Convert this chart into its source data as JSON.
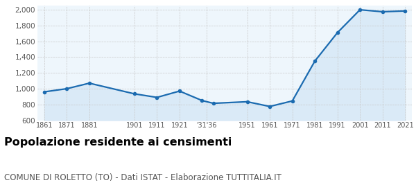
{
  "years": [
    1861,
    1871,
    1881,
    1901,
    1911,
    1921,
    1931,
    1936,
    1951,
    1961,
    1971,
    1981,
    1991,
    2001,
    2011,
    2021
  ],
  "x_labels": [
    "1861",
    "1871",
    "1881",
    "1901",
    "1911",
    "1921",
    "’31′36",
    "1951",
    "1961",
    "1971",
    "1981",
    "1991",
    "2001",
    "2011",
    "2021"
  ],
  "x_tick_years": [
    1861,
    1871,
    1881,
    1901,
    1911,
    1921,
    1933,
    1951,
    1961,
    1971,
    1981,
    1991,
    2001,
    2011,
    2021
  ],
  "population": [
    960,
    1000,
    1070,
    935,
    890,
    970,
    850,
    815,
    835,
    775,
    845,
    1350,
    1710,
    2000,
    1975,
    1985
  ],
  "line_color": "#1b6bb0",
  "fill_color": "#daeaf7",
  "marker_color": "#1b6bb0",
  "bg_color": "#eef6fc",
  "grid_color": "#c8c8c8",
  "ylim": [
    600,
    2050
  ],
  "yticks": [
    600,
    800,
    1000,
    1200,
    1400,
    1600,
    1800,
    2000
  ],
  "title": "Popolazione residente ai censimenti",
  "subtitle": "COMUNE DI ROLETTO (TO) - Dati ISTAT - Elaborazione TUTTITALIA.IT",
  "title_fontsize": 11.5,
  "subtitle_fontsize": 8.5
}
